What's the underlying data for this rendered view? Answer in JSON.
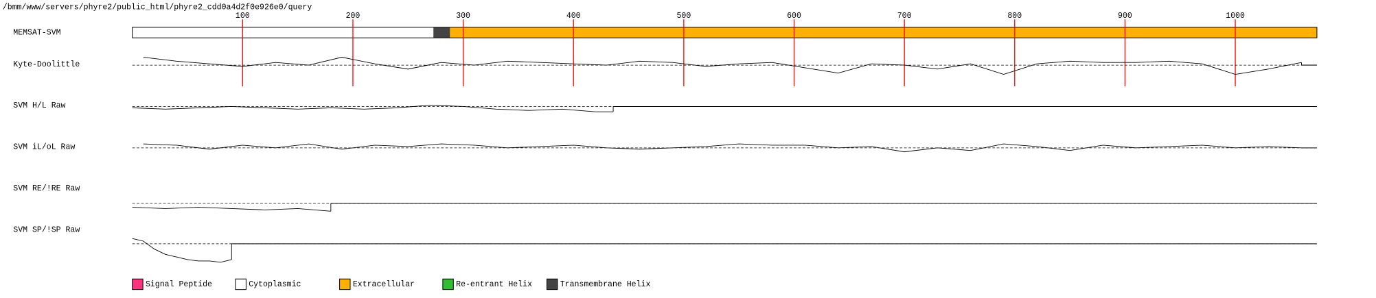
{
  "header": {
    "path": "/bmm/www/servers/phyre2/public_html/phyre2_cdd0a4d2f0e926e0/query"
  },
  "chart_data": {
    "type": "membrane-tracks",
    "bar_label": "MEMSAT-SVM",
    "xlim": [
      0,
      1074
    ],
    "xticks": [
      100,
      200,
      300,
      400,
      500,
      600,
      700,
      800,
      900,
      1000
    ],
    "tick_color": "#ff0000",
    "ylim": [
      -1.5,
      1.5
    ],
    "legend": [
      {
        "name": "Signal Peptide",
        "color": "#ff3380",
        "segments": []
      },
      {
        "name": "Cytoplasmic",
        "color": "#ffffff",
        "segments": [
          [
            0,
            273
          ]
        ]
      },
      {
        "name": "Extracellular",
        "color": "#ffb000",
        "segments": [
          [
            288,
            1074
          ]
        ]
      },
      {
        "name": "Re-entrant Helix",
        "color": "#33bb33",
        "segments": []
      },
      {
        "name": "Transmembrane Helix",
        "color": "#444444",
        "segments": [
          [
            273,
            288
          ]
        ]
      }
    ],
    "series": [
      {
        "name": "Kyte-Doolittle",
        "color": "#000000",
        "x": [
          10,
          40,
          70,
          100,
          130,
          160,
          190,
          220,
          250,
          280,
          310,
          340,
          370,
          400,
          430,
          460,
          490,
          520,
          550,
          580,
          610,
          640,
          670,
          700,
          730,
          760,
          790,
          820,
          850,
          880,
          910,
          940,
          970,
          1000,
          1030,
          1060
        ],
        "values": [
          0.6,
          0.3,
          0.1,
          -0.1,
          0.2,
          0.0,
          0.6,
          0.1,
          -0.3,
          0.2,
          0.0,
          0.3,
          0.2,
          0.1,
          0.0,
          0.3,
          0.2,
          -0.1,
          0.1,
          0.2,
          -0.2,
          -0.6,
          0.1,
          0.0,
          -0.3,
          0.1,
          -0.7,
          0.1,
          0.3,
          0.2,
          0.2,
          0.3,
          0.1,
          -0.7,
          -0.3,
          0.2
        ]
      },
      {
        "name": "SVM H/L Raw",
        "color": "#000000",
        "x": [
          0,
          30,
          60,
          90,
          120,
          150,
          180,
          210,
          240,
          270,
          300,
          330,
          360,
          390,
          420,
          436
        ],
        "values": [
          -0.1,
          -0.2,
          -0.1,
          0.0,
          -0.1,
          -0.2,
          -0.1,
          -0.2,
          -0.1,
          0.1,
          0.0,
          -0.2,
          -0.3,
          -0.2,
          -0.4,
          -0.4
        ]
      },
      {
        "name": "SVM iL/oL Raw",
        "color": "#000000",
        "x": [
          10,
          40,
          70,
          100,
          130,
          160,
          190,
          220,
          250,
          280,
          310,
          340,
          370,
          400,
          430,
          460,
          490,
          520,
          550,
          580,
          610,
          640,
          670,
          700,
          730,
          760,
          790,
          820,
          850,
          880,
          910,
          940,
          970,
          1000,
          1030,
          1060
        ],
        "values": [
          0.3,
          0.2,
          -0.1,
          0.2,
          0.0,
          0.3,
          -0.1,
          0.2,
          0.1,
          0.3,
          0.2,
          0.0,
          0.1,
          0.2,
          0.0,
          -0.1,
          0.0,
          0.1,
          0.3,
          0.2,
          0.2,
          0.0,
          0.1,
          -0.3,
          0.0,
          -0.2,
          0.3,
          0.1,
          -0.2,
          0.2,
          0.0,
          0.1,
          0.2,
          0.0,
          0.1,
          0.0
        ]
      },
      {
        "name": "SVM RE/!RE Raw",
        "color": "#000000",
        "x": [
          0,
          30,
          60,
          90,
          120,
          150,
          180
        ],
        "values": [
          -0.3,
          -0.4,
          -0.3,
          -0.4,
          -0.5,
          -0.4,
          -0.6
        ]
      },
      {
        "name": "SVM SP/!SP Raw",
        "color": "#000000",
        "x": [
          0,
          10,
          20,
          30,
          40,
          50,
          60,
          70,
          80,
          90
        ],
        "values": [
          0.4,
          0.2,
          -0.4,
          -0.8,
          -1.0,
          -1.2,
          -1.3,
          -1.3,
          -1.4,
          -1.2
        ]
      }
    ]
  }
}
